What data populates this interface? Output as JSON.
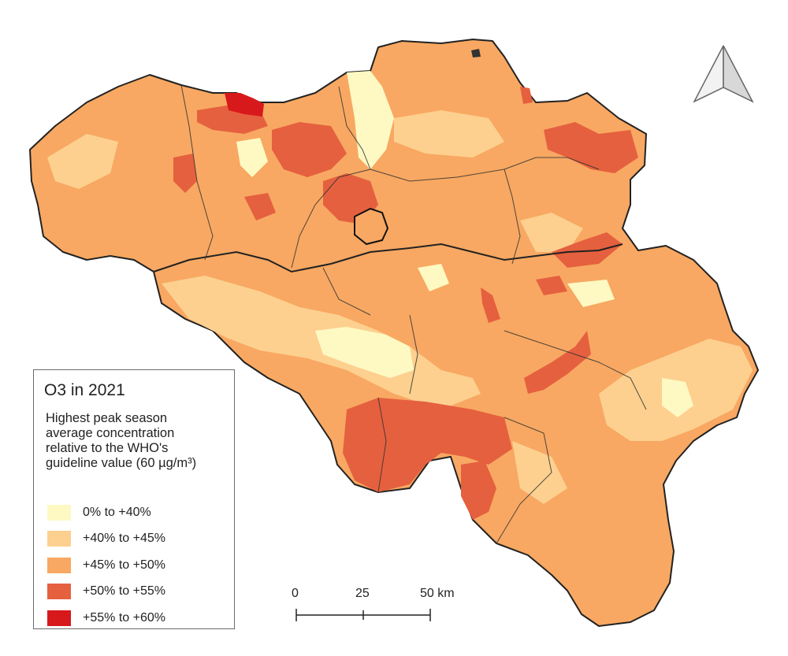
{
  "legend": {
    "title": "O3 in 2021",
    "subtitle": "Highest peak season\naverage concentration\nrelative to the WHO's\nguideline value (60 µg/m³)",
    "items": [
      {
        "label": "0% to +40%",
        "color": "#fef9c3"
      },
      {
        "label": "+40% to +45%",
        "color": "#fdd08f"
      },
      {
        "label": "+45% to +50%",
        "color": "#f8a862"
      },
      {
        "label": "+50% to +55%",
        "color": "#e5603f"
      },
      {
        "label": "+55% to +60%",
        "color": "#d7191c"
      }
    ]
  },
  "scale_bar": {
    "ticks": [
      "0",
      "25",
      "50 km"
    ]
  },
  "north_arrow": {
    "icon": "north-arrow-icon"
  }
}
